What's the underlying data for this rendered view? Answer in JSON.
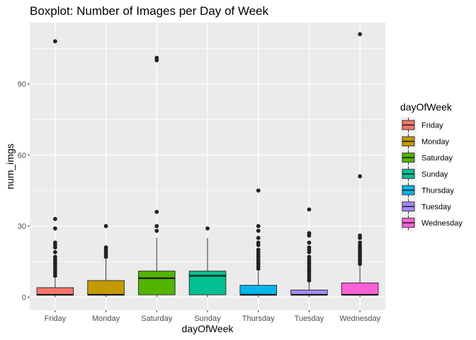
{
  "chart_data": {
    "type": "boxplot",
    "title": "Boxplot: Number of Images per Day of Week",
    "xlabel": "dayOfWeek",
    "ylabel": "num_imgs",
    "ylim": [
      -3,
      115
    ],
    "yticks": [
      0,
      30,
      60,
      90
    ],
    "grid": true,
    "legend_position": "right",
    "legend_title": "dayOfWeek",
    "categories": [
      "Friday",
      "Monday",
      "Saturday",
      "Sunday",
      "Thursday",
      "Tuesday",
      "Wednesday"
    ],
    "series": [
      {
        "name": "Friday",
        "color": "#F8766D",
        "whisker_low": 0,
        "q1": 1,
        "median": 1,
        "q3": 4,
        "whisker_high": 8,
        "outliers": [
          9,
          10,
          11,
          12,
          13,
          14,
          15,
          16,
          17,
          19,
          21,
          22,
          23,
          29,
          33,
          108
        ]
      },
      {
        "name": "Monday",
        "color": "#C49A00",
        "whisker_low": 0,
        "q1": 1,
        "median": 1,
        "q3": 7,
        "whisker_high": 16,
        "outliers": [
          17,
          18,
          19,
          20,
          21,
          30
        ]
      },
      {
        "name": "Saturday",
        "color": "#53B400",
        "whisker_low": 0,
        "q1": 1,
        "median": 8,
        "q3": 11,
        "whisker_high": 25,
        "outliers": [
          28,
          30,
          36,
          100,
          101
        ]
      },
      {
        "name": "Sunday",
        "color": "#00C094",
        "whisker_low": 0,
        "q1": 1,
        "median": 9,
        "q3": 11,
        "whisker_high": 25,
        "outliers": [
          29
        ]
      },
      {
        "name": "Thursday",
        "color": "#00B6EB",
        "whisker_low": 0,
        "q1": 1,
        "median": 1,
        "q3": 5,
        "whisker_high": 11,
        "outliers": [
          12,
          13,
          14,
          15,
          16,
          17,
          18,
          19,
          20,
          22,
          23,
          25,
          28,
          30,
          45
        ]
      },
      {
        "name": "Tuesday",
        "color": "#A58AFF",
        "whisker_low": 0,
        "q1": 1,
        "median": 1,
        "q3": 3,
        "whisker_high": 6,
        "outliers": [
          7,
          8,
          9,
          10,
          11,
          12,
          13,
          14,
          15,
          16,
          17,
          19,
          20,
          21,
          23,
          26,
          27,
          37
        ]
      },
      {
        "name": "Wednesday",
        "color": "#FB61D7",
        "whisker_low": 0,
        "q1": 1,
        "median": 1,
        "q3": 6,
        "whisker_high": 13,
        "outliers": [
          14,
          15,
          16,
          17,
          18,
          19,
          20,
          21,
          22,
          23,
          25,
          26,
          51,
          111
        ]
      }
    ]
  }
}
